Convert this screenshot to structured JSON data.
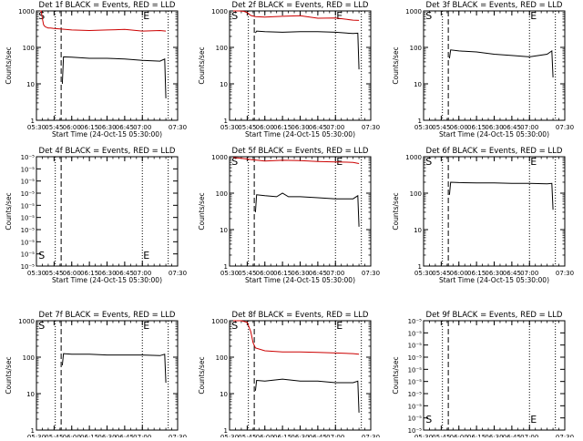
{
  "x_tick_labels": [
    "05:30",
    "05:45",
    "06:00",
    "06:15",
    "06:30",
    "06:45",
    "07:00",
    "07:30"
  ],
  "x_label": "Start Time (24-Oct-15 05:30:00)",
  "colors": {
    "events": "#000000",
    "lld": "#cc0000",
    "axes": "#000000"
  },
  "chart_data": [
    {
      "type": "line",
      "title": "Det 1f BLACK = Events, RED = LLD",
      "ylabel": "Counts/sec",
      "yscale": "log",
      "yticks": [
        "1",
        "10",
        "100",
        "1000"
      ],
      "ylim": [
        1,
        1000
      ],
      "x_ticks_min": [
        0,
        15,
        30,
        45,
        60,
        75,
        90,
        120
      ],
      "xlim_min": [
        0,
        120
      ],
      "markers": [
        {
          "label": "S",
          "x_min": 1
        },
        {
          "label": "E",
          "x_min": 90
        }
      ],
      "dotted_lines_min": [
        16,
        90,
        112
      ],
      "dashed_line_min": 21,
      "lld": {
        "x_min": [
          3,
          4,
          5,
          6,
          7,
          8,
          9,
          10,
          12,
          15,
          20,
          30,
          45,
          60,
          75,
          90,
          105,
          110
        ],
        "values": [
          1000,
          1000,
          620,
          420,
          380,
          360,
          350,
          340,
          340,
          330,
          320,
          300,
          290,
          300,
          310,
          280,
          290,
          280
        ]
      },
      "events": {
        "x_min": [
          22,
          23,
          30,
          45,
          60,
          75,
          90,
          105,
          109,
          110
        ],
        "values": [
          10,
          55,
          54,
          50,
          50,
          48,
          44,
          42,
          48,
          4
        ]
      }
    },
    {
      "type": "line",
      "title": "Det 2f BLACK = Events, RED = LLD",
      "ylabel": "Counts/sec",
      "yscale": "log",
      "yticks": [
        "1",
        "10",
        "100",
        "1000"
      ],
      "ylim": [
        1,
        1000
      ],
      "x_ticks_min": [
        0,
        15,
        30,
        45,
        60,
        75,
        90,
        120
      ],
      "xlim_min": [
        0,
        120
      ],
      "markers": [
        {
          "label": "S",
          "x_min": 1
        },
        {
          "label": "E",
          "x_min": 90
        }
      ],
      "dotted_lines_min": [
        16,
        90,
        112
      ],
      "dashed_line_min": 21,
      "lld": {
        "x_min": [
          3,
          8,
          12,
          15,
          18,
          22,
          30,
          45,
          60,
          75,
          90,
          105,
          110
        ],
        "values": [
          1000,
          1000,
          980,
          900,
          750,
          700,
          680,
          710,
          740,
          630,
          640,
          560,
          550
        ]
      },
      "events": {
        "x_min": [
          22,
          23,
          30,
          45,
          60,
          75,
          90,
          105,
          109,
          110
        ],
        "values": [
          250,
          280,
          270,
          260,
          270,
          270,
          260,
          240,
          245,
          25
        ]
      }
    },
    {
      "type": "line",
      "title": "Det 3f BLACK = Events, RED = LLD",
      "ylabel": "Counts/sec",
      "yscale": "log",
      "yticks": [
        "1",
        "10",
        "100",
        "1000"
      ],
      "ylim": [
        1,
        1000
      ],
      "x_ticks_min": [
        0,
        15,
        30,
        45,
        60,
        75,
        90,
        120
      ],
      "xlim_min": [
        0,
        120
      ],
      "markers": [
        {
          "label": "S",
          "x_min": 1
        },
        {
          "label": "E",
          "x_min": 90
        }
      ],
      "dotted_lines_min": [
        16,
        90,
        112
      ],
      "dashed_line_min": 21,
      "lld": null,
      "events": {
        "x_min": [
          22,
          23,
          30,
          45,
          60,
          75,
          90,
          105,
          109,
          110
        ],
        "values": [
          50,
          85,
          80,
          75,
          65,
          60,
          55,
          65,
          80,
          15
        ]
      }
    },
    {
      "type": "line",
      "title": "Det 4f BLACK = Events, RED = LLD",
      "ylabel": "Counts/sec",
      "yscale": "log",
      "yticks": [
        "10⁻⁵",
        "10⁻⁵",
        "10⁻⁵",
        "10⁻⁵",
        "10⁻⁵",
        "10⁻⁵",
        "10⁻⁵",
        "10⁻⁵",
        "10⁻⁵",
        "10⁻⁵"
      ],
      "ylim": [
        1,
        1000
      ],
      "x_ticks_min": [
        0,
        15,
        30,
        45,
        60,
        75,
        90,
        120
      ],
      "xlim_min": [
        0,
        120
      ],
      "markers": [
        {
          "label": "S",
          "x_min": 1
        },
        {
          "label": "E",
          "x_min": 90
        }
      ],
      "dotted_lines_min": [
        16,
        90,
        112
      ],
      "dashed_line_min": 21,
      "lld": null,
      "events": null
    },
    {
      "type": "line",
      "title": "Det 5f BLACK = Events, RED = LLD",
      "ylabel": "Counts/sec",
      "yscale": "log",
      "yticks": [
        "1",
        "10",
        "100",
        "1000"
      ],
      "ylim": [
        1,
        1000
      ],
      "x_ticks_min": [
        0,
        15,
        30,
        45,
        60,
        75,
        90,
        120
      ],
      "xlim_min": [
        0,
        120
      ],
      "markers": [
        {
          "label": "S",
          "x_min": 1
        },
        {
          "label": "E",
          "x_min": 90
        }
      ],
      "dotted_lines_min": [
        16,
        90,
        112
      ],
      "dashed_line_min": 21,
      "lld": {
        "x_min": [
          3,
          10,
          20,
          30,
          45,
          60,
          75,
          90,
          105,
          110
        ],
        "values": [
          950,
          900,
          820,
          760,
          800,
          780,
          740,
          720,
          700,
          650
        ]
      },
      "events": {
        "x_min": [
          22,
          23,
          30,
          40,
          45,
          50,
          60,
          75,
          90,
          105,
          109,
          110
        ],
        "values": [
          30,
          90,
          85,
          80,
          100,
          80,
          80,
          75,
          70,
          70,
          85,
          12
        ]
      }
    },
    {
      "type": "line",
      "title": "Det 6f BLACK = Events, RED = LLD",
      "ylabel": "Counts/sec",
      "yscale": "log",
      "yticks": [
        "1",
        "10",
        "100",
        "1000"
      ],
      "ylim": [
        1,
        1000
      ],
      "x_ticks_min": [
        0,
        15,
        30,
        45,
        60,
        75,
        90,
        120
      ],
      "xlim_min": [
        0,
        120
      ],
      "markers": [
        {
          "label": "S",
          "x_min": 1
        },
        {
          "label": "E",
          "x_min": 90
        }
      ],
      "dotted_lines_min": [
        16,
        90,
        112
      ],
      "dashed_line_min": 21,
      "lld": null,
      "events": {
        "x_min": [
          22,
          23,
          30,
          45,
          60,
          75,
          90,
          105,
          109,
          110
        ],
        "values": [
          90,
          200,
          195,
          190,
          190,
          185,
          185,
          180,
          185,
          35
        ]
      }
    },
    {
      "type": "line",
      "title": "Det 7f BLACK = Events, RED = LLD",
      "ylabel": "Counts/sec",
      "yscale": "log",
      "yticks": [
        "1",
        "10",
        "100",
        "1000"
      ],
      "ylim": [
        1,
        1000
      ],
      "x_ticks_min": [
        0,
        15,
        30,
        45,
        60,
        75,
        90,
        120
      ],
      "xlim_min": [
        0,
        120
      ],
      "markers": [
        {
          "label": "S",
          "x_min": 1
        },
        {
          "label": "E",
          "x_min": 90
        }
      ],
      "dotted_lines_min": [
        16,
        90,
        112
      ],
      "dashed_line_min": 21,
      "lld": null,
      "events": {
        "x_min": [
          22,
          23,
          30,
          45,
          60,
          75,
          90,
          105,
          109,
          110
        ],
        "values": [
          60,
          125,
          120,
          120,
          115,
          115,
          115,
          110,
          120,
          20
        ]
      }
    },
    {
      "type": "line",
      "title": "Det 8f BLACK = Events, RED = LLD",
      "ylabel": "Counts/sec",
      "yscale": "log",
      "yticks": [
        "1",
        "10",
        "100",
        "1000"
      ],
      "ylim": [
        1,
        1000
      ],
      "x_ticks_min": [
        0,
        15,
        30,
        45,
        60,
        75,
        90,
        120
      ],
      "xlim_min": [
        0,
        120
      ],
      "markers": [
        {
          "label": "S",
          "x_min": 1
        },
        {
          "label": "E",
          "x_min": 90
        }
      ],
      "dotted_lines_min": [
        16,
        90,
        112
      ],
      "dashed_line_min": 21,
      "lld": {
        "x_min": [
          3,
          10,
          15,
          18,
          20,
          22,
          30,
          45,
          60,
          75,
          90,
          105,
          110
        ],
        "values": [
          1000,
          1000,
          900,
          500,
          250,
          180,
          150,
          140,
          140,
          135,
          130,
          125,
          120
        ]
      },
      "events": {
        "x_min": [
          22,
          23,
          30,
          45,
          60,
          75,
          90,
          105,
          109,
          110
        ],
        "values": [
          12,
          23,
          22,
          25,
          22,
          22,
          20,
          20,
          22,
          3
        ]
      }
    },
    {
      "type": "line",
      "title": "Det 9f BLACK = Events, RED = LLD",
      "ylabel": "Counts/sec",
      "yscale": "log",
      "yticks": [
        "10⁻⁵",
        "10⁻⁵",
        "10⁻⁵",
        "10⁻⁵",
        "10⁻⁵",
        "10⁻⁵",
        "10⁻⁵",
        "10⁻⁵",
        "10⁻⁵",
        "10⁻⁵"
      ],
      "ylim": [
        1,
        1000
      ],
      "x_ticks_min": [
        0,
        15,
        30,
        45,
        60,
        75,
        90,
        120
      ],
      "xlim_min": [
        0,
        120
      ],
      "markers": [
        {
          "label": "S",
          "x_min": 1
        },
        {
          "label": "E",
          "x_min": 90
        }
      ],
      "dotted_lines_min": [
        16,
        90,
        112
      ],
      "dashed_line_min": 21,
      "lld": null,
      "events": null
    }
  ]
}
